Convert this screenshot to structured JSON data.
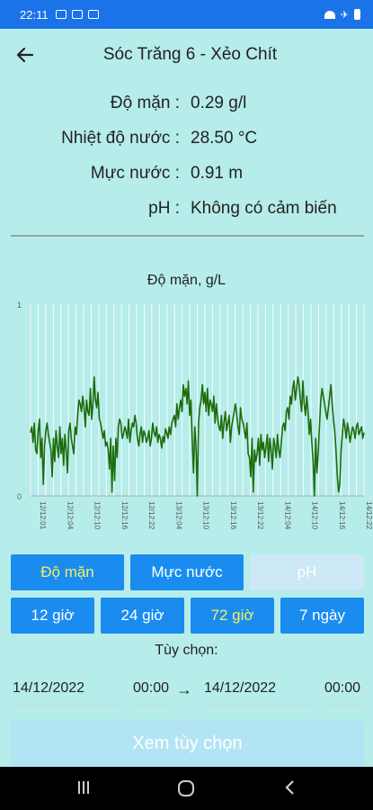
{
  "status_bar": {
    "time": "22:11"
  },
  "app_bar": {
    "title": "Sóc Trăng 6 - Xẻo Chít"
  },
  "readings": [
    {
      "label": "Độ mặn :",
      "value": "0.29 g/l"
    },
    {
      "label": "Nhiệt độ nước :",
      "value": "28.50 °C"
    },
    {
      "label": "Mực nước :",
      "value": "0.91 m"
    },
    {
      "label": "pH :",
      "value": "Không có cảm biến"
    }
  ],
  "chart_data": {
    "type": "line",
    "title": "Độ mặn, g/L",
    "ylim": [
      0,
      1
    ],
    "y_ticks": [
      "0",
      "1"
    ],
    "x_ticks": [
      "12/12:01",
      "12/12:04",
      "12/12:10",
      "12/12:16",
      "12/12:22",
      "13/12:04",
      "13/12:10",
      "13/12:16",
      "13/12:22",
      "14/12:04",
      "14/12:10",
      "14/12:16",
      "14/12:22"
    ],
    "series_color": "#1e6b0a",
    "grid": true,
    "values": [
      0.33,
      0.36,
      0.28,
      0.38,
      0.24,
      0.22,
      0.34,
      0.4,
      0.2,
      0.3,
      0.06,
      0.26,
      0.34,
      0.38,
      0.32,
      0.28,
      0.24,
      0.1,
      0.3,
      0.18,
      0.34,
      0.26,
      0.2,
      0.36,
      0.22,
      0.3,
      0.16,
      0.32,
      0.24,
      0.12,
      0.34,
      0.38,
      0.3,
      0.26,
      0.22,
      0.36,
      0.32,
      0.42,
      0.5,
      0.48,
      0.44,
      0.52,
      0.46,
      0.36,
      0.5,
      0.44,
      0.42,
      0.56,
      0.4,
      0.48,
      0.62,
      0.5,
      0.46,
      0.54,
      0.4,
      0.38,
      0.34,
      0.3,
      0.34,
      0.26,
      0.28,
      0.24,
      0.14,
      0.3,
      0.02,
      0.26,
      0.08,
      0.3,
      0.2,
      0.36,
      0.4,
      0.38,
      0.3,
      0.32,
      0.36,
      0.34,
      0.3,
      0.4,
      0.28,
      0.34,
      0.38,
      0.36,
      0.42,
      0.38,
      0.3,
      0.26,
      0.32,
      0.36,
      0.28,
      0.34,
      0.32,
      0.28,
      0.3,
      0.34,
      0.26,
      0.3,
      0.38,
      0.33,
      0.31,
      0.36,
      0.28,
      0.32,
      0.3,
      0.25,
      0.31,
      0.28,
      0.35,
      0.33,
      0.3,
      0.36,
      0.32,
      0.38,
      0.4,
      0.42,
      0.36,
      0.48,
      0.4,
      0.46,
      0.5,
      0.44,
      0.58,
      0.52,
      0.56,
      0.48,
      0.6,
      0.42,
      0.5,
      0.3,
      0.12,
      0.36,
      0.26,
      0.0,
      0.38,
      0.46,
      0.5,
      0.58,
      0.48,
      0.54,
      0.44,
      0.56,
      0.42,
      0.5,
      0.48,
      0.44,
      0.52,
      0.38,
      0.48,
      0.4,
      0.36,
      0.34,
      0.42,
      0.3,
      0.38,
      0.44,
      0.34,
      0.38,
      0.42,
      0.28,
      0.36,
      0.4,
      0.44,
      0.48,
      0.42,
      0.36,
      0.32,
      0.46,
      0.4,
      0.38,
      0.34,
      0.3,
      0.38,
      0.22,
      0.2,
      0.1,
      0.3,
      0.02,
      0.24,
      0.18,
      0.22,
      0.3,
      0.16,
      0.32,
      0.24,
      0.28,
      0.2,
      0.26,
      0.32,
      0.18,
      0.3,
      0.24,
      0.14,
      0.3,
      0.26,
      0.2,
      0.32,
      0.24,
      0.2,
      0.28,
      0.36,
      0.38,
      0.34,
      0.44,
      0.46,
      0.4,
      0.52,
      0.48,
      0.56,
      0.6,
      0.5,
      0.56,
      0.62,
      0.58,
      0.5,
      0.44,
      0.6,
      0.48,
      0.42,
      0.52,
      0.44,
      0.32,
      0.4,
      0.28,
      0.18,
      0.0,
      0.3,
      0.12,
      0.22,
      0.36,
      0.5,
      0.56,
      0.52,
      0.48,
      0.44,
      0.4,
      0.46,
      0.52,
      0.58,
      0.48,
      0.4,
      0.34,
      0.24,
      0.1,
      0.02,
      0.06,
      0.24,
      0.32,
      0.4,
      0.36,
      0.3,
      0.38,
      0.34,
      0.28,
      0.32,
      0.36,
      0.34,
      0.3,
      0.36,
      0.38,
      0.32,
      0.34,
      0.36,
      0.3,
      0.33
    ]
  },
  "tabs_variable": [
    {
      "label": "Độ mặn",
      "state": "selected"
    },
    {
      "label": "Mực nước",
      "state": "normal"
    },
    {
      "label": "pH",
      "state": "disabled"
    }
  ],
  "tabs_range": [
    {
      "label": "12 giờ",
      "state": "normal"
    },
    {
      "label": "24 giờ",
      "state": "normal"
    },
    {
      "label": "72 giờ",
      "state": "selected"
    },
    {
      "label": "7 ngày",
      "state": "normal"
    }
  ],
  "custom": {
    "label": "Tùy chọn:",
    "from_date": "14/12/2022",
    "from_time": "00:00",
    "arrow": "→",
    "to_date": "14/12/2022",
    "to_time": "00:00",
    "view_button": "Xem tùy chọn"
  },
  "colors": {
    "primary": "#1a8cf0",
    "background": "#b6ecea",
    "status_bar": "#1a73e8",
    "selected_text": "#f4f060"
  }
}
